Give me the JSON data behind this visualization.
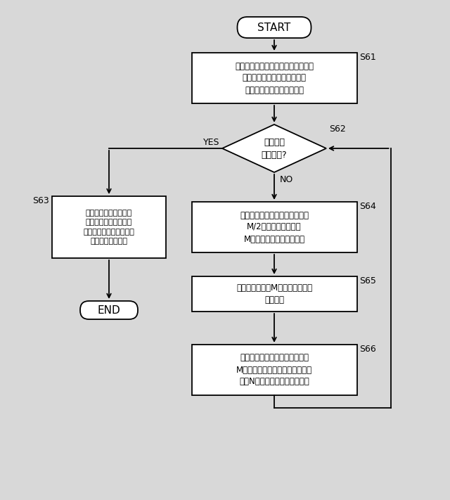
{
  "bg_color": "#d8d8d8",
  "box_color": "#ffffff",
  "box_edge": "#000000",
  "text_color": "#000000",
  "title": "START",
  "end_label": "END",
  "steps": {
    "S61": "ランダムに候補充電ステーションを\n組み合せて初期候補充電場所\nリストを作成し、評価する",
    "S62_diamond": "終了条件\nを満たす?",
    "S63": "評価値が一番良い候補\n充電場所の中から選択\nされた充電ステーション\n及び充電量を返す",
    "S64": "選択、交叉及び突然変異操作を\nM/2回適用して新たな\nM候補充電場所を作成する",
    "S65": "生成した新たなM候補充電場所を\n評価する",
    "S66": "前候補充電場所リストと新たな\nM候補充電場所の中から評価値が\n良いN候補充電場所を選択する"
  },
  "labels": {
    "S61": "S61",
    "S62": "S62",
    "S63": "S63",
    "S64": "S64",
    "S65": "S65",
    "S66": "S66"
  },
  "yes_label": "YES",
  "no_label": "NO",
  "figsize": [
    6.4,
    7.11
  ],
  "dpi": 100
}
